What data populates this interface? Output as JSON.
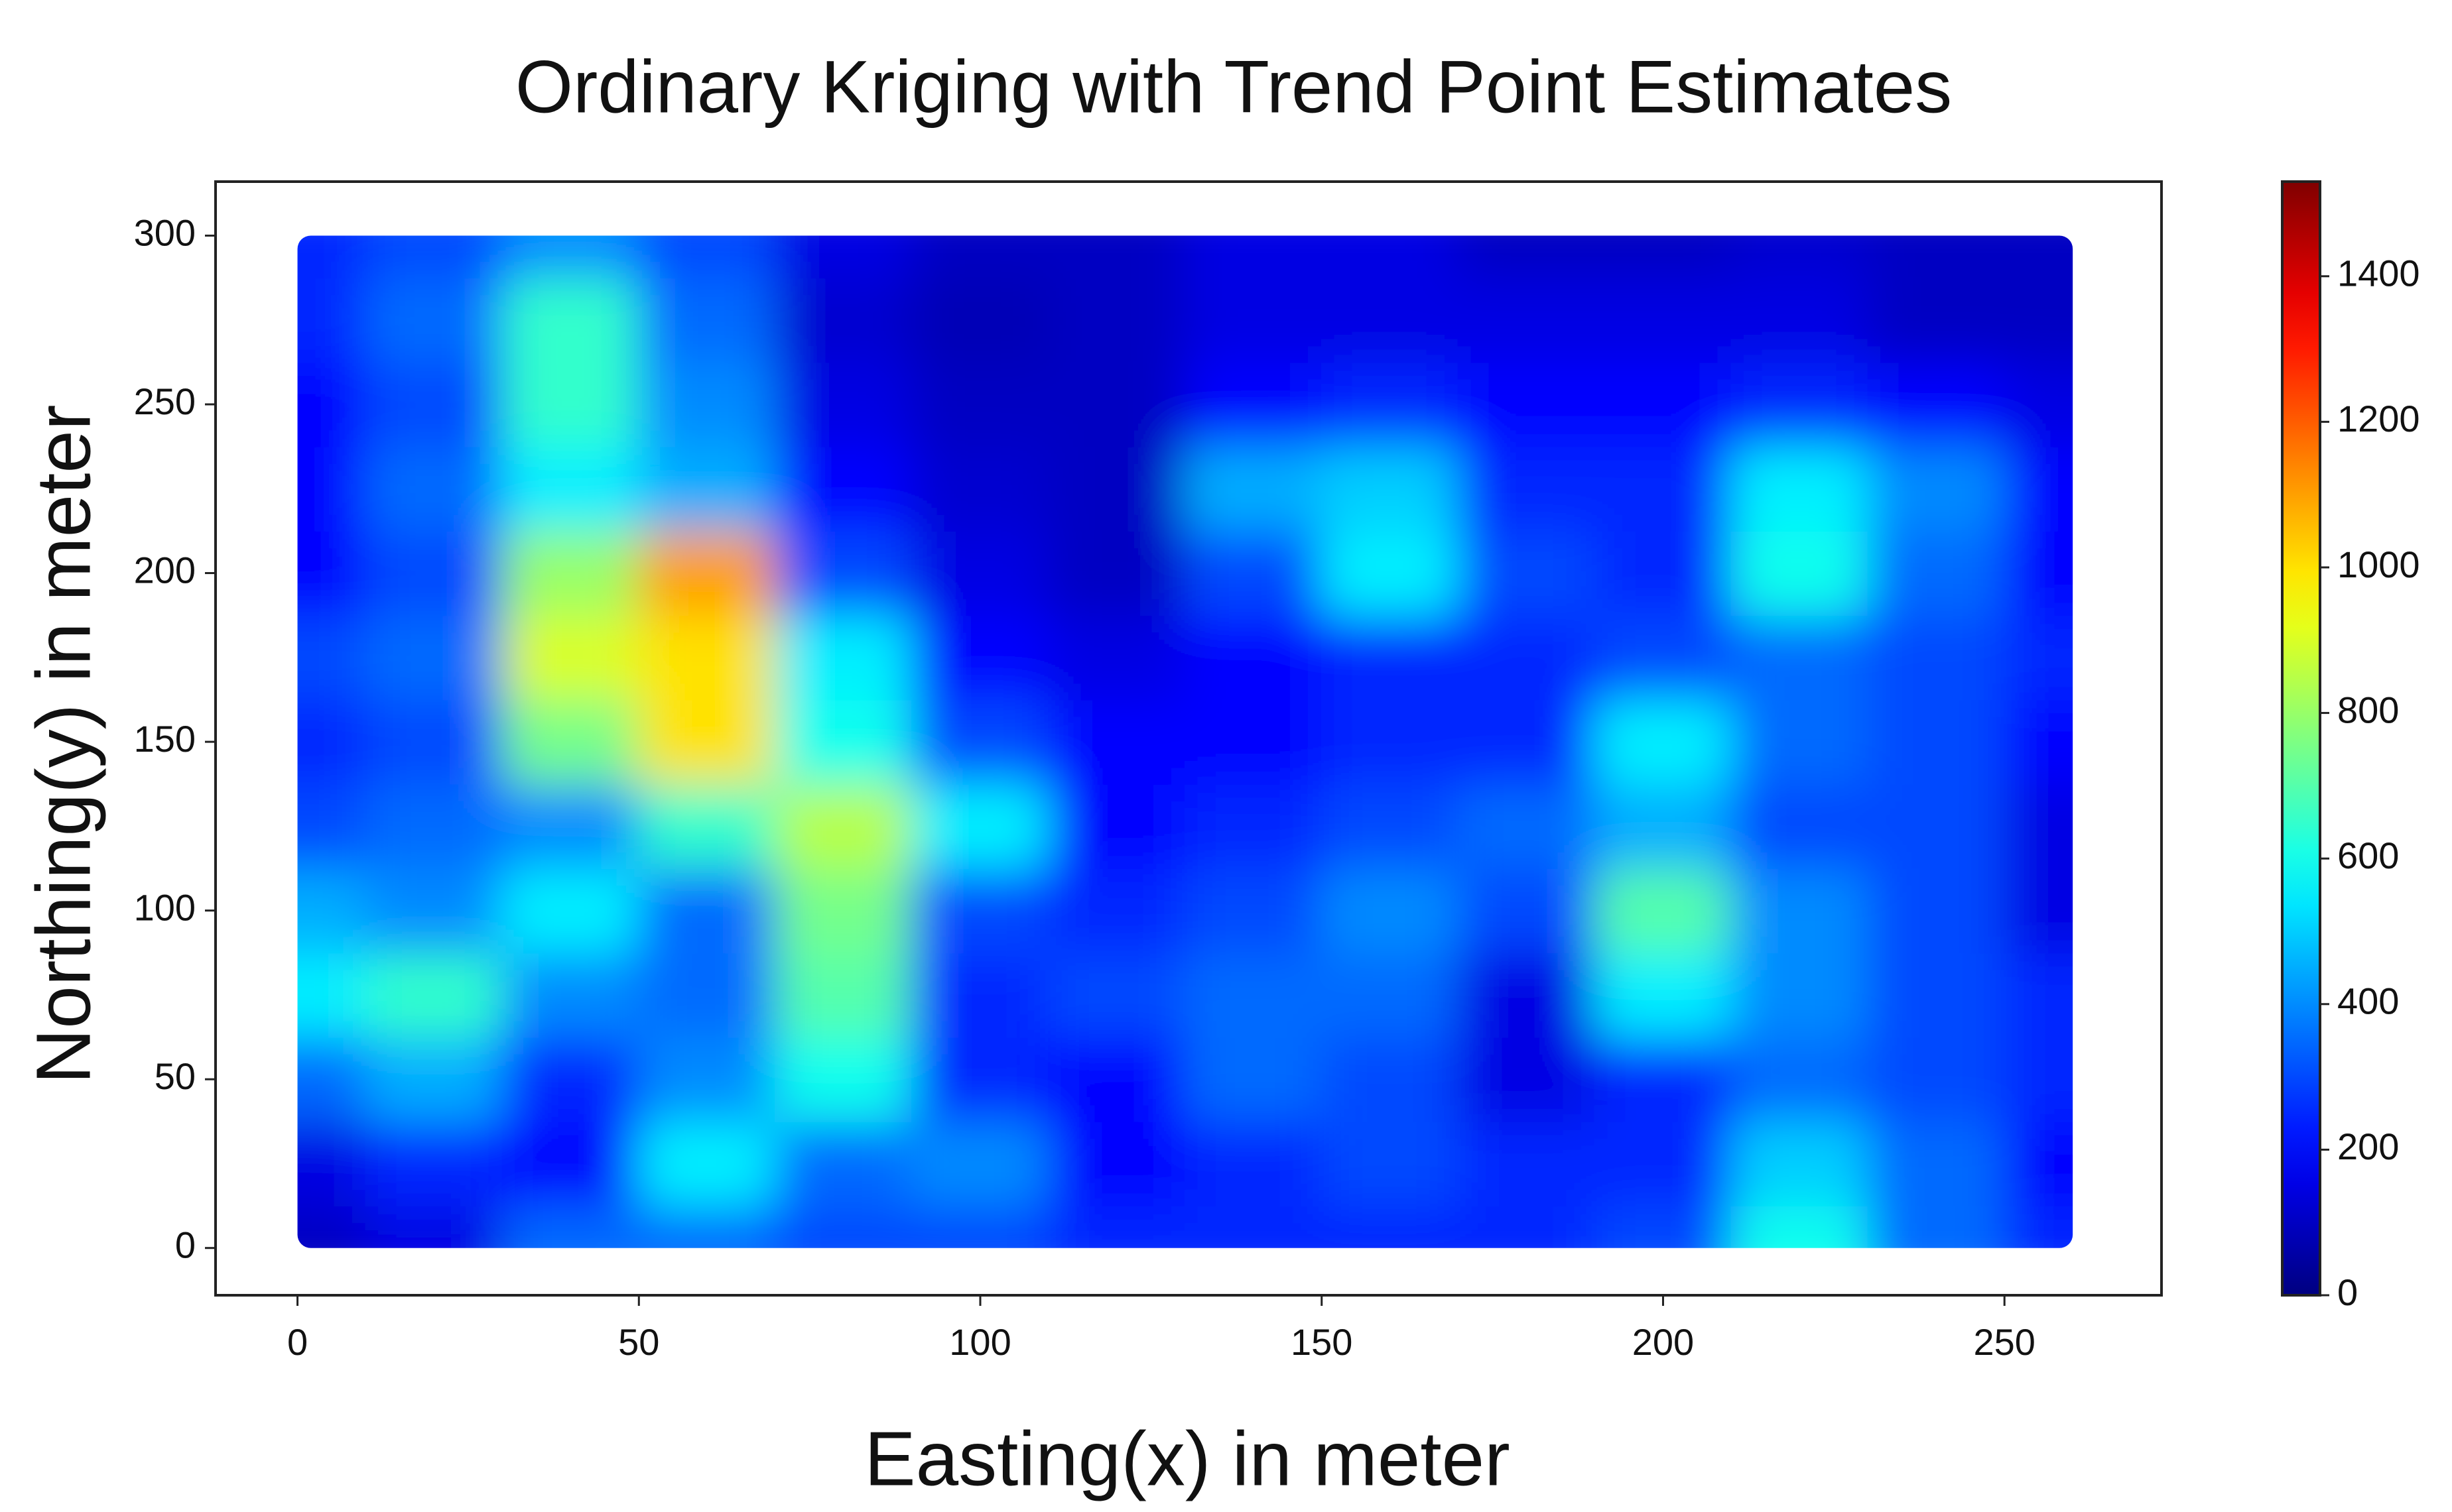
{
  "chart_data": {
    "type": "heatmap",
    "title": "Ordinary Kriging with Trend Point Estimates",
    "x_label": "Easting(x) in meter",
    "y_label": "Northing(y) in meter",
    "colormap": "jet",
    "x": [
      0,
      20,
      40,
      60,
      80,
      100,
      120,
      140,
      160,
      180,
      200,
      220,
      240,
      260
    ],
    "y": [
      0,
      25,
      50,
      75,
      100,
      125,
      150,
      175,
      200,
      225,
      250,
      275,
      300
    ],
    "z": [
      [
        100,
        150,
        350,
        350,
        300,
        300,
        250,
        250,
        250,
        250,
        300,
        600,
        350,
        250
      ],
      [
        150,
        250,
        200,
        550,
        350,
        400,
        200,
        250,
        300,
        250,
        250,
        500,
        350,
        200
      ],
      [
        350,
        450,
        250,
        400,
        600,
        250,
        200,
        350,
        300,
        150,
        250,
        350,
        300,
        250
      ],
      [
        550,
        650,
        400,
        350,
        700,
        250,
        300,
        350,
        350,
        150,
        550,
        400,
        300,
        250
      ],
      [
        450,
        400,
        550,
        350,
        750,
        300,
        250,
        300,
        400,
        300,
        700,
        400,
        300,
        150
      ],
      [
        300,
        350,
        400,
        650,
        850,
        550,
        200,
        250,
        300,
        350,
        450,
        300,
        300,
        150
      ],
      [
        250,
        300,
        750,
        1000,
        600,
        300,
        200,
        200,
        250,
        250,
        550,
        350,
        300,
        200
      ],
      [
        300,
        350,
        900,
        1000,
        550,
        200,
        150,
        200,
        250,
        250,
        300,
        350,
        300,
        250
      ],
      [
        200,
        300,
        800,
        1100,
        300,
        150,
        100,
        300,
        550,
        300,
        250,
        600,
        350,
        200
      ],
      [
        200,
        350,
        550,
        450,
        200,
        120,
        100,
        450,
        500,
        250,
        250,
        550,
        400,
        200
      ],
      [
        200,
        300,
        650,
        400,
        150,
        100,
        100,
        200,
        250,
        200,
        200,
        250,
        200,
        150
      ],
      [
        250,
        350,
        650,
        350,
        120,
        80,
        100,
        150,
        150,
        150,
        150,
        150,
        100,
        100
      ],
      [
        250,
        300,
        400,
        300,
        150,
        100,
        100,
        150,
        150,
        100,
        100,
        120,
        100,
        100
      ]
    ],
    "xlim": [
      -12,
      273
    ],
    "ylim": [
      -14,
      316
    ],
    "xticks": [
      0,
      50,
      100,
      150,
      200,
      250
    ],
    "yticks": [
      0,
      50,
      100,
      150,
      200,
      250,
      300
    ],
    "clim": [
      0,
      1530
    ],
    "cticks": [
      0,
      200,
      400,
      600,
      800,
      1000,
      1200,
      1400
    ]
  }
}
